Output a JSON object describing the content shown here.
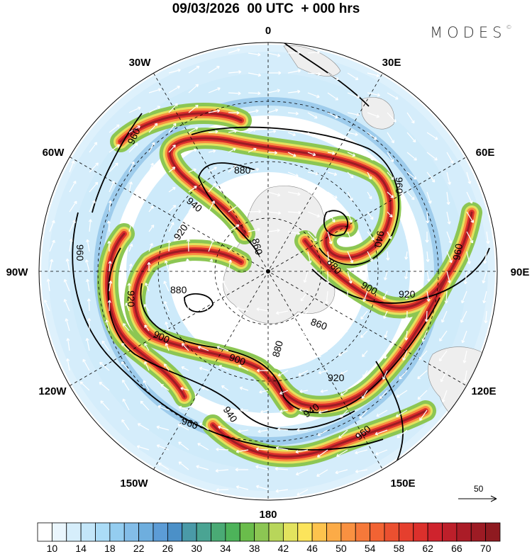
{
  "header": {
    "title": "09/03/2026  00 UTC  + 000 hrs",
    "logo": "MODES",
    "logo_mark": "©"
  },
  "map": {
    "longitude_labels": {
      "n": "0",
      "ne": "30E",
      "e60": "60E",
      "e90": "90E",
      "e120": "120E",
      "e150": "150E",
      "s": "180",
      "w150": "150W",
      "w120": "120W",
      "w90": "90W",
      "w60": "60W",
      "w30": "30W"
    },
    "contour_labels": [
      "960",
      "880",
      "940",
      "920",
      "860",
      "960",
      "940",
      "880",
      "900",
      "920",
      "960",
      "920",
      "880",
      "900",
      "900",
      "880",
      "860",
      "920",
      "940",
      "960",
      "940",
      "960",
      "960",
      "880"
    ],
    "vector_legend": {
      "label": "50"
    }
  },
  "colorbar": {
    "colors": [
      "#ffffff",
      "#eaf6fd",
      "#d6eefb",
      "#c3e6f9",
      "#abdcf7",
      "#94cdf0",
      "#83bde8",
      "#6eaede",
      "#5c9cd6",
      "#4b90c8",
      "#4a9aa8",
      "#4aa493",
      "#4aaa75",
      "#4db35a",
      "#6abd4b",
      "#8cc653",
      "#b8d65a",
      "#e3e35e",
      "#fce45b",
      "#fdc34d",
      "#fcab47",
      "#f99141",
      "#f6793a",
      "#f26333",
      "#eb5030",
      "#e53f2e",
      "#dc302c",
      "#cf232d",
      "#bd1f2a",
      "#ab1c27",
      "#9d1b24",
      "#8f1a20"
    ],
    "ticks": [
      "10",
      "14",
      "18",
      "22",
      "26",
      "30",
      "34",
      "38",
      "42",
      "46",
      "50",
      "54",
      "58",
      "62",
      "66",
      "70"
    ]
  }
}
